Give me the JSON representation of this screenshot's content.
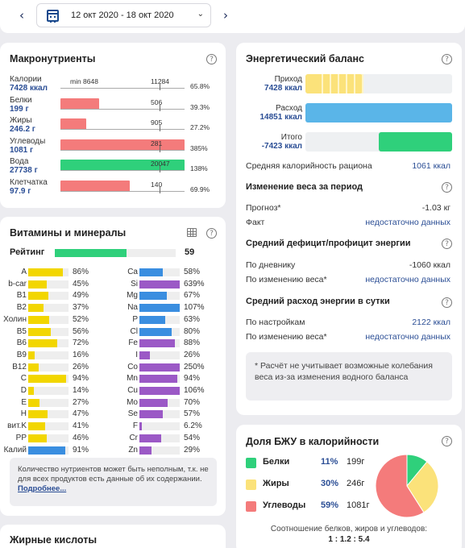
{
  "topbar": {
    "date_range": "12 окт 2020 - 18 окт 2020",
    "prev_arrow": "‹",
    "next_arrow": "›"
  },
  "macros": {
    "title": "Макронутриенты",
    "rows": [
      {
        "name": "Калории",
        "value": "7428 ккал",
        "fraction_of_scale": 0.0,
        "color": "#fff",
        "min_label": "min 8648",
        "norm_label": "11284",
        "pct": "65.8%"
      },
      {
        "name": "Белки",
        "value": "199 г",
        "fraction_of_scale": 0.31,
        "color": "#f47b7b",
        "norm_label": "506",
        "pct": "39.3%"
      },
      {
        "name": "Жиры",
        "value": "246.2 г",
        "fraction_of_scale": 0.21,
        "color": "#f47b7b",
        "norm_label": "905",
        "pct": "27.2%"
      },
      {
        "name": "Углеводы",
        "value": "1081 г",
        "fraction_of_scale": 1.0,
        "color": "#f47b7b",
        "norm_label": "281",
        "pct": "385%"
      },
      {
        "name": "Вода",
        "value": "27738 г",
        "fraction_of_scale": 1.0,
        "color": "#2fd07b",
        "norm_label": "20047",
        "pct": "138%"
      },
      {
        "name": "Клетчатка",
        "value": "97.9 г",
        "fraction_of_scale": 0.56,
        "color": "#f47b7b",
        "norm_label": "140",
        "pct": "69.9%"
      }
    ]
  },
  "vitamins": {
    "title": "Витамины и минералы",
    "rating_label": "Рейтинг",
    "rating_value": "59",
    "rating_fraction": 0.59,
    "left": [
      {
        "name": "A",
        "pct": "86%",
        "level": 0.86,
        "color": "#f2d600"
      },
      {
        "name": "b-car",
        "pct": "45%",
        "level": 0.45,
        "color": "#f2d600"
      },
      {
        "name": "B1",
        "pct": "49%",
        "level": 0.49,
        "color": "#f2d600"
      },
      {
        "name": "B2",
        "pct": "37%",
        "level": 0.37,
        "color": "#f2d600"
      },
      {
        "name": "Холин",
        "pct": "52%",
        "level": 0.52,
        "color": "#f2d600"
      },
      {
        "name": "B5",
        "pct": "56%",
        "level": 0.56,
        "color": "#f2d600"
      },
      {
        "name": "B6",
        "pct": "72%",
        "level": 0.72,
        "color": "#f2d600"
      },
      {
        "name": "B9",
        "pct": "16%",
        "level": 0.16,
        "color": "#f2d600"
      },
      {
        "name": "B12",
        "pct": "26%",
        "level": 0.26,
        "color": "#f2d600"
      },
      {
        "name": "C",
        "pct": "94%",
        "level": 0.94,
        "color": "#f2d600"
      },
      {
        "name": "D",
        "pct": "14%",
        "level": 0.14,
        "color": "#f2d600"
      },
      {
        "name": "E",
        "pct": "27%",
        "level": 0.27,
        "color": "#f2d600"
      },
      {
        "name": "H",
        "pct": "47%",
        "level": 0.47,
        "color": "#f2d600"
      },
      {
        "name": "вит.K",
        "pct": "41%",
        "level": 0.41,
        "color": "#f2d600"
      },
      {
        "name": "PP",
        "pct": "46%",
        "level": 0.46,
        "color": "#f2d600"
      },
      {
        "name": "Калий",
        "pct": "91%",
        "level": 0.91,
        "color": "#3a8ee0"
      }
    ],
    "right": [
      {
        "name": "Ca",
        "pct": "58%",
        "level": 0.58,
        "color": "#3a8ee0"
      },
      {
        "name": "Si",
        "pct": "639%",
        "level": 1.0,
        "color": "#9b59c6"
      },
      {
        "name": "Mg",
        "pct": "67%",
        "level": 0.67,
        "color": "#3a8ee0"
      },
      {
        "name": "Na",
        "pct": "107%",
        "level": 1.0,
        "color": "#3a8ee0"
      },
      {
        "name": "P",
        "pct": "63%",
        "level": 0.63,
        "color": "#3a8ee0"
      },
      {
        "name": "Cl",
        "pct": "80%",
        "level": 0.8,
        "color": "#3a8ee0"
      },
      {
        "name": "Fe",
        "pct": "88%",
        "level": 0.88,
        "color": "#9b59c6"
      },
      {
        "name": "I",
        "pct": "26%",
        "level": 0.26,
        "color": "#9b59c6"
      },
      {
        "name": "Co",
        "pct": "250%",
        "level": 1.0,
        "color": "#9b59c6"
      },
      {
        "name": "Mn",
        "pct": "94%",
        "level": 0.94,
        "color": "#9b59c6"
      },
      {
        "name": "Cu",
        "pct": "106%",
        "level": 1.0,
        "color": "#9b59c6"
      },
      {
        "name": "Mo",
        "pct": "70%",
        "level": 0.7,
        "color": "#9b59c6"
      },
      {
        "name": "Se",
        "pct": "57%",
        "level": 0.57,
        "color": "#9b59c6"
      },
      {
        "name": "F",
        "pct": "6.2%",
        "level": 0.062,
        "color": "#9b59c6"
      },
      {
        "name": "Cr",
        "pct": "54%",
        "level": 0.54,
        "color": "#9b59c6"
      },
      {
        "name": "Zn",
        "pct": "29%",
        "level": 0.29,
        "color": "#9b59c6"
      }
    ],
    "note": "Количество нутриентов может быть неполным, т.к. не для всех продуктов есть данные об их содержании.",
    "note_link": "Подробнее..."
  },
  "fatty": {
    "title": "Жирные кислоты"
  },
  "energy": {
    "title": "Энергетический баланс",
    "bars": [
      {
        "label": "Приход",
        "value": "7428 ккал",
        "level": 0.39,
        "color": "#fbe27a"
      },
      {
        "label": "Расход",
        "value": "14851 ккал",
        "level": 1.0,
        "color": "#5ab5e8"
      },
      {
        "label": "Итого",
        "value": "-7423 ккал",
        "level": 0.5,
        "color": "#2fd07b"
      }
    ],
    "avg_label": "Средняя калорийность рациона",
    "avg_value": "1061 ккал",
    "weight_title": "Изменение веса за период",
    "forecast_label": "Прогноз*",
    "forecast_value": "-1.03 кг",
    "fact_label": "Факт",
    "fact_value": "недостаточно данных",
    "deficit_title": "Средний дефицит/профицит энергии",
    "diary_label": "По дневнику",
    "diary_value": "-1060 ккал",
    "weightchange_label": "По изменению веса*",
    "weightchange_value": "недостаточно данных",
    "daily_title": "Средний расход энергии в сутки",
    "settings_label": "По настройкам",
    "settings_value": "2122 ккал",
    "daily_weight_label": "По изменению веса*",
    "daily_weight_value": "недостаточно данных",
    "footnote": "* Расчёт не учитывает возможные колебания веса из-за изменения водного баланса"
  },
  "bju": {
    "title": "Доля БЖУ в калорийности",
    "rows": [
      {
        "name": "Белки",
        "pct": "11%",
        "grams": "199г",
        "color": "#2fd07b"
      },
      {
        "name": "Жиры",
        "pct": "30%",
        "grams": "246г",
        "color": "#fbe27a"
      },
      {
        "name": "Углеводы",
        "pct": "59%",
        "grams": "1081г",
        "color": "#f47b7b"
      }
    ],
    "slices": [
      11,
      30,
      59
    ],
    "ratio_label": "Соотношение белков, жиров и углеводов:",
    "ratio_value": "1 : 1.2 : 5.4"
  }
}
